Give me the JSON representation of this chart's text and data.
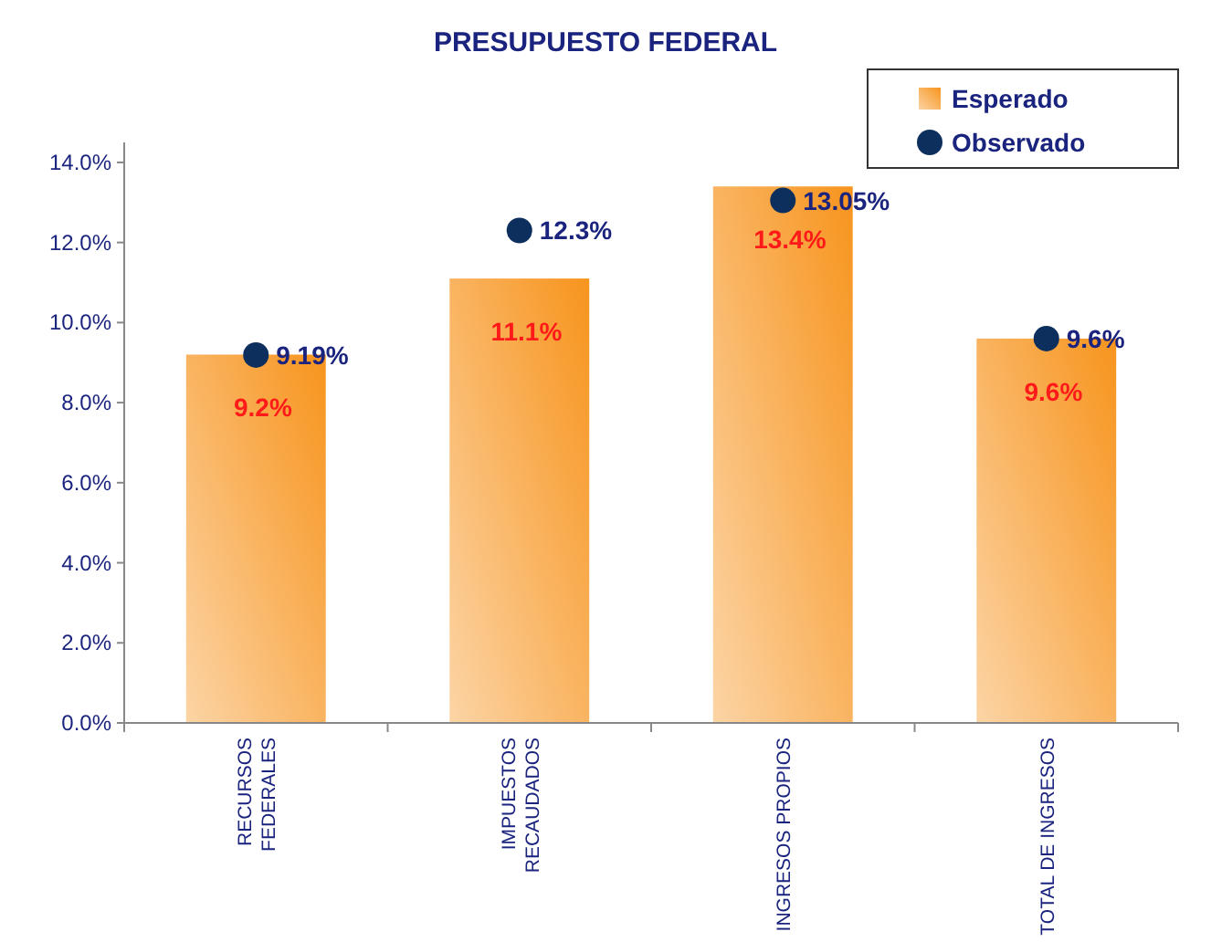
{
  "chart_data": {
    "type": "bar",
    "title": "PRESUPUESTO FEDERAL",
    "categories": [
      "RECURSOS\nFEDERALES",
      "IMPUESTOS\nRECAUDADOS",
      "INGRESOS PROPIOS",
      "TOTAL DE INGRESOS"
    ],
    "series": [
      {
        "name": "Esperado",
        "color": "#f7941d",
        "values": [
          9.2,
          11.1,
          13.4,
          9.6
        ],
        "value_labels": [
          "9.2%",
          "11.1%",
          "13.4%",
          "9.6%"
        ]
      },
      {
        "name": "Observado",
        "type": "scatter",
        "color": "#0d2f5e",
        "marker": "circle",
        "x": [
          "RECURSOS\nFEDERALES",
          "IMPUESTOS\nRECAUDADOS",
          "INGRESOS PROPIOS",
          "TOTAL DE INGRESOS"
        ],
        "values": [
          9.19,
          12.3,
          13.05,
          9.6
        ],
        "value_labels": [
          "9.19%",
          "12.3%",
          "13.05%",
          "9.6%"
        ]
      }
    ],
    "ylim": [
      0,
      14.5
    ],
    "yticks": [
      {
        "value": 0,
        "label": "0.0%"
      },
      {
        "value": 2,
        "label": "2.0%"
      },
      {
        "value": 4,
        "label": "4.0%"
      },
      {
        "value": 6,
        "label": "6.0%"
      },
      {
        "value": 8,
        "label": "8.0%"
      },
      {
        "value": 10,
        "label": "10.0%"
      },
      {
        "value": 12,
        "label": "12.0%"
      },
      {
        "value": 14,
        "label": "14.0%"
      }
    ],
    "grid": false,
    "legend": "top right"
  }
}
